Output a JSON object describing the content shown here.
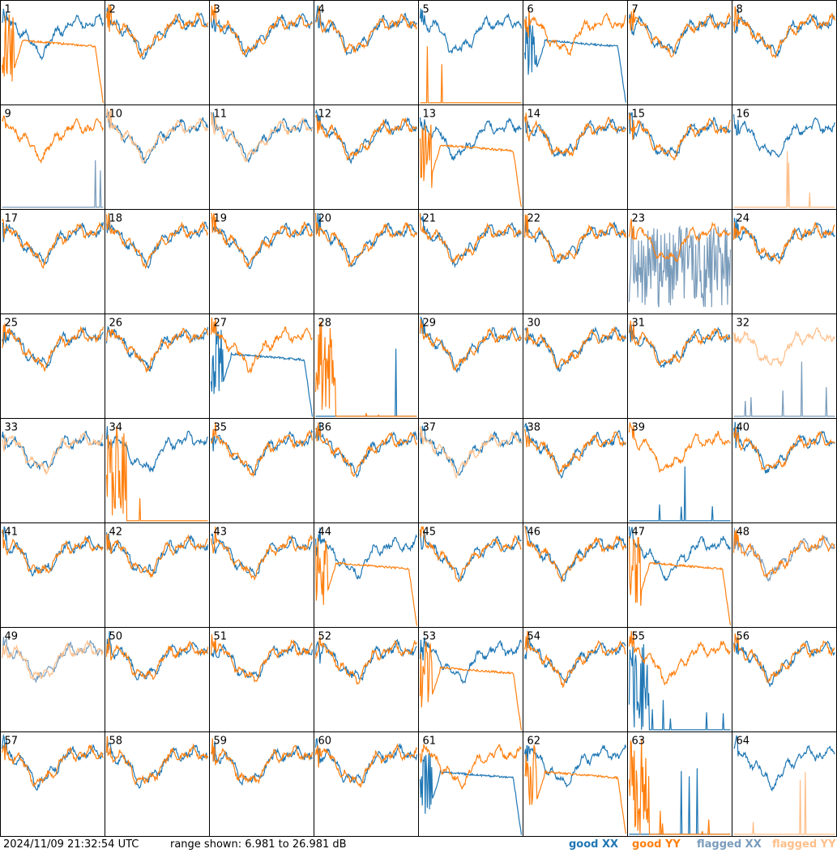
{
  "footer": {
    "timestamp": "2024/11/09 21:32:54 UTC",
    "range_text": "range shown: 6.981 to 26.981 dB"
  },
  "legend": [
    {
      "label": "good XX",
      "color": "#1f77b4"
    },
    {
      "label": "good YY",
      "color": "#ff7f0e"
    },
    {
      "label": "flagged XX",
      "color": "#7a9cbb"
    },
    {
      "label": "flagged YY",
      "color": "#ffbf8a"
    }
  ],
  "chart_data": {
    "type": "line",
    "title": "",
    "grid_layout": [
      8,
      8
    ],
    "ylim_db": [
      6.981,
      26.981
    ],
    "series_colors": {
      "good XX": "#1f77b4",
      "good YY": "#ff7f0e",
      "flagged XX": "#7a9cbb",
      "flagged YY": "#ffbf8a"
    },
    "panels": [
      {
        "label": "1",
        "xx": "good",
        "yy": "good",
        "yy_shape": "bad"
      },
      {
        "label": "2",
        "xx": "good",
        "yy": "good"
      },
      {
        "label": "3",
        "xx": "good",
        "yy": "good"
      },
      {
        "label": "4",
        "xx": "good",
        "yy": "good"
      },
      {
        "label": "5",
        "xx": "good",
        "yy": "good",
        "yy_shape": "flat"
      },
      {
        "label": "6",
        "xx": "good",
        "yy": "good",
        "xx_shape": "bad"
      },
      {
        "label": "7",
        "xx": "good",
        "yy": "good"
      },
      {
        "label": "8",
        "xx": "good",
        "yy": "good"
      },
      {
        "label": "9",
        "xx": "flagged",
        "yy": "good",
        "xx_shape": "flat"
      },
      {
        "label": "10",
        "xx": "good",
        "yy": "flagged"
      },
      {
        "label": "11",
        "xx": "good",
        "yy": "flagged"
      },
      {
        "label": "12",
        "xx": "good",
        "yy": "good"
      },
      {
        "label": "13",
        "xx": "good",
        "yy": "good",
        "yy_shape": "bad"
      },
      {
        "label": "14",
        "xx": "good",
        "yy": "good"
      },
      {
        "label": "15",
        "xx": "good",
        "yy": "good"
      },
      {
        "label": "16",
        "xx": "good",
        "yy": "flagged",
        "yy_shape": "flat"
      },
      {
        "label": "17",
        "xx": "good",
        "yy": "good"
      },
      {
        "label": "18",
        "xx": "good",
        "yy": "good"
      },
      {
        "label": "19",
        "xx": "good",
        "yy": "good"
      },
      {
        "label": "20",
        "xx": "good",
        "yy": "good"
      },
      {
        "label": "21",
        "xx": "good",
        "yy": "good"
      },
      {
        "label": "22",
        "xx": "good",
        "yy": "good"
      },
      {
        "label": "23",
        "xx": "flagged",
        "yy": "good",
        "xx_shape": "noisy"
      },
      {
        "label": "24",
        "xx": "good",
        "yy": "good"
      },
      {
        "label": "25",
        "xx": "good",
        "yy": "good"
      },
      {
        "label": "26",
        "xx": "good",
        "yy": "good"
      },
      {
        "label": "27",
        "xx": "good",
        "yy": "good",
        "xx_shape": "bad"
      },
      {
        "label": "28",
        "xx": "good",
        "yy": "good",
        "xx_shape": "flat",
        "yy_shape": "dead"
      },
      {
        "label": "29",
        "xx": "good",
        "yy": "good"
      },
      {
        "label": "30",
        "xx": "good",
        "yy": "good"
      },
      {
        "label": "31",
        "xx": "good",
        "yy": "good"
      },
      {
        "label": "32",
        "xx": "flagged",
        "yy": "flagged",
        "xx_shape": "flat"
      },
      {
        "label": "33",
        "xx": "good",
        "yy": "flagged"
      },
      {
        "label": "34",
        "xx": "good",
        "yy": "good",
        "yy_shape": "dead"
      },
      {
        "label": "35",
        "xx": "good",
        "yy": "good"
      },
      {
        "label": "36",
        "xx": "good",
        "yy": "good"
      },
      {
        "label": "37",
        "xx": "good",
        "yy": "flagged"
      },
      {
        "label": "38",
        "xx": "good",
        "yy": "good"
      },
      {
        "label": "39",
        "xx": "good",
        "yy": "good",
        "xx_shape": "flat"
      },
      {
        "label": "40",
        "xx": "good",
        "yy": "good"
      },
      {
        "label": "41",
        "xx": "good",
        "yy": "good"
      },
      {
        "label": "42",
        "xx": "good",
        "yy": "good"
      },
      {
        "label": "43",
        "xx": "good",
        "yy": "good"
      },
      {
        "label": "44",
        "xx": "good",
        "yy": "good",
        "yy_shape": "bad"
      },
      {
        "label": "45",
        "xx": "good",
        "yy": "good"
      },
      {
        "label": "46",
        "xx": "good",
        "yy": "good"
      },
      {
        "label": "47",
        "xx": "good",
        "yy": "good",
        "yy_shape": "bad"
      },
      {
        "label": "48",
        "xx": "flagged",
        "yy": "good"
      },
      {
        "label": "49",
        "xx": "flagged",
        "yy": "flagged"
      },
      {
        "label": "50",
        "xx": "good",
        "yy": "good"
      },
      {
        "label": "51",
        "xx": "good",
        "yy": "good"
      },
      {
        "label": "52",
        "xx": "good",
        "yy": "good"
      },
      {
        "label": "53",
        "xx": "good",
        "yy": "good",
        "yy_shape": "bad"
      },
      {
        "label": "54",
        "xx": "good",
        "yy": "good"
      },
      {
        "label": "55",
        "xx": "good",
        "yy": "good",
        "xx_shape": "dead"
      },
      {
        "label": "56",
        "xx": "good",
        "yy": "good"
      },
      {
        "label": "57",
        "xx": "good",
        "yy": "good"
      },
      {
        "label": "58",
        "xx": "good",
        "yy": "good"
      },
      {
        "label": "59",
        "xx": "good",
        "yy": "good"
      },
      {
        "label": "60",
        "xx": "good",
        "yy": "good"
      },
      {
        "label": "61",
        "xx": "good",
        "yy": "good",
        "xx_shape": "bad"
      },
      {
        "label": "62",
        "xx": "good",
        "yy": "good",
        "yy_shape": "bad"
      },
      {
        "label": "63",
        "xx": "good",
        "yy": "good",
        "yy_shape": "dead",
        "xx_shape": "flat"
      },
      {
        "label": "64",
        "xx": "good",
        "yy": "flagged",
        "yy_shape": "flat"
      }
    ]
  }
}
